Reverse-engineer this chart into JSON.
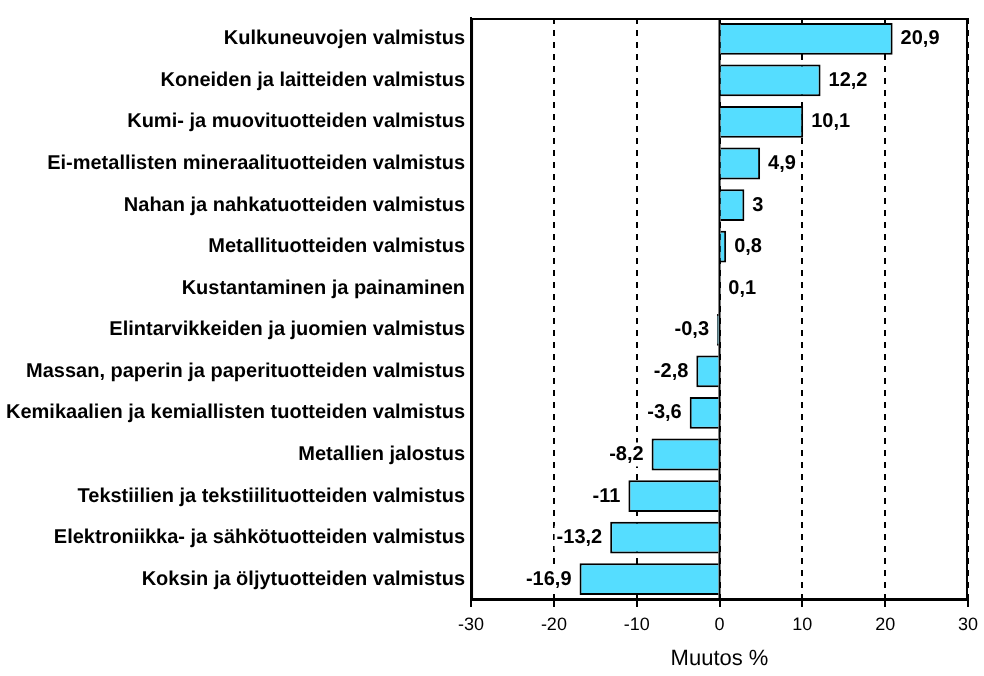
{
  "chart_data": {
    "type": "bar",
    "orientation": "horizontal",
    "xlabel": "Muutos %",
    "categories": [
      "Kulkuneuvojen valmistus",
      "Koneiden ja laitteiden valmistus",
      "Kumi- ja muovituotteiden valmistus",
      "Ei-metallisten mineraalituotteiden valmistus",
      "Nahan ja nahkatuotteiden valmistus",
      "Metallituotteiden valmistus",
      "Kustantaminen ja painaminen",
      "Elintarvikkeiden ja juomien valmistus",
      "Massan, paperin ja paperituotteiden valmistus",
      "Kemikaalien ja kemiallisten tuotteiden valmistus",
      "Metallien jalostus",
      "Tekstiilien ja tekstiilituotteiden valmistus",
      "Elektroniikka- ja sähkötuotteiden valmistus",
      "Koksin ja öljytuotteiden valmistus"
    ],
    "values": [
      20.9,
      12.2,
      10.1,
      4.9,
      3,
      0.8,
      0.1,
      -0.3,
      -2.8,
      -3.6,
      -8.2,
      -11,
      -13.2,
      -16.9
    ],
    "value_labels": [
      "20,9",
      "12,2",
      "10,1",
      "4,9",
      "3",
      "0,8",
      "0,1",
      "-0,3",
      "-2,8",
      "-3,6",
      "-8,2",
      "-11",
      "-13,2",
      "-16,9"
    ],
    "color": "#55ddff",
    "xlim": [
      -30,
      30
    ],
    "xticks": [
      -30,
      -20,
      -10,
      0,
      10,
      20,
      30
    ],
    "grid": "x"
  }
}
